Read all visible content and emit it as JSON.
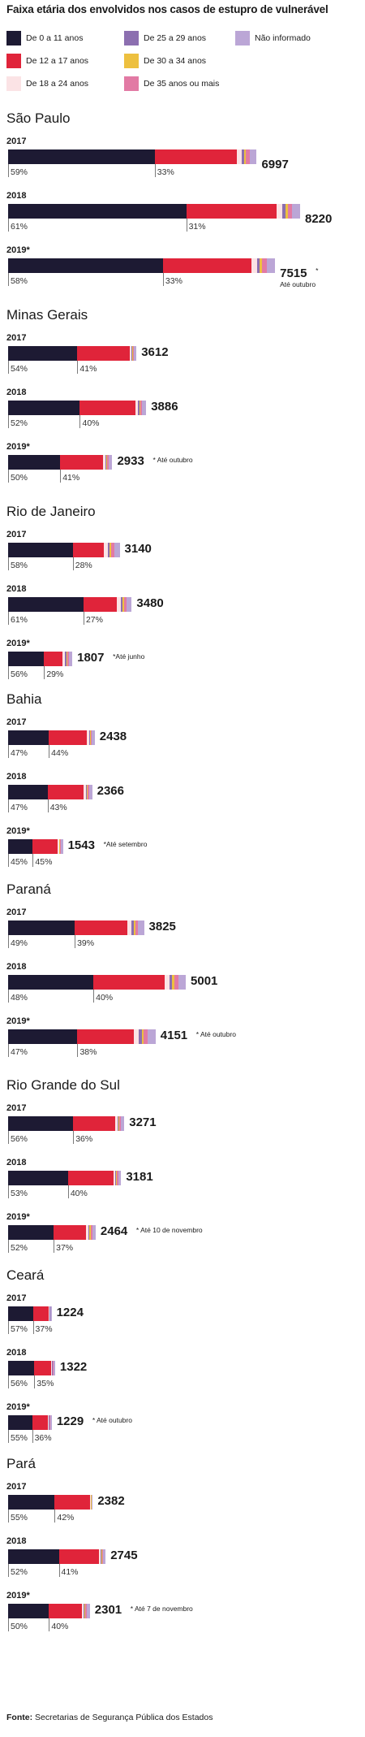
{
  "chart_data": {
    "type": "bar",
    "orientation": "horizontal-stacked",
    "title": "Faixa etária dos envolvidos nos casos de estupro de vulnerável",
    "source_label": "Fonte:",
    "source_text": "Secretarias de Segurança Pública dos Estados",
    "legend": [
      {
        "name": "De 0 a 11 anos",
        "color": "#1d1a33"
      },
      {
        "name": "De 25 a 29 anos",
        "color": "#8c6fb0"
      },
      {
        "name": "Não informado",
        "color": "#bba6d6"
      },
      {
        "name": "De 12 a 17 anos",
        "color": "#e0243a"
      },
      {
        "name": "De 30 a 34 anos",
        "color": "#edc03f"
      },
      {
        "name": "De 18 a 24 anos",
        "color": "#fbe3e5"
      },
      {
        "name": "De 35 anos ou mais",
        "color": "#e27aa4"
      }
    ],
    "states": [
      {
        "name": "São Paulo",
        "years": [
          {
            "label": "2017",
            "total": 6997,
            "total_text": "6997",
            "pct_0_11": 59,
            "pct_0_11_text": "59%",
            "pct_12_17": 33,
            "pct_12_17_text": "33%",
            "note": ""
          },
          {
            "label": "2018",
            "total": 8220,
            "total_text": "8220",
            "pct_0_11": 61,
            "pct_0_11_text": "61%",
            "pct_12_17": 31,
            "pct_12_17_text": "31%",
            "note": ""
          },
          {
            "label": "2019*",
            "total": 7515,
            "total_text": "7515",
            "pct_0_11": 58,
            "pct_0_11_text": "58%",
            "pct_12_17": 33,
            "pct_12_17_text": "33%",
            "note": "*",
            "note2": "Até outubro"
          }
        ]
      },
      {
        "name": "Minas Gerais",
        "years": [
          {
            "label": "2017",
            "total": 3612,
            "total_text": "3612",
            "pct_0_11": 54,
            "pct_0_11_text": "54%",
            "pct_12_17": 41,
            "pct_12_17_text": "41%",
            "note": ""
          },
          {
            "label": "2018",
            "total": 3886,
            "total_text": "3886",
            "pct_0_11": 52,
            "pct_0_11_text": "52%",
            "pct_12_17": 40,
            "pct_12_17_text": "40%",
            "note": ""
          },
          {
            "label": "2019*",
            "total": 2933,
            "total_text": "2933",
            "pct_0_11": 50,
            "pct_0_11_text": "50%",
            "pct_12_17": 41,
            "pct_12_17_text": "41%",
            "note": "* Até outubro"
          }
        ]
      },
      {
        "name": "Rio de Janeiro",
        "years": [
          {
            "label": "2017",
            "total": 3140,
            "total_text": "3140",
            "pct_0_11": 58,
            "pct_0_11_text": "58%",
            "pct_12_17": 28,
            "pct_12_17_text": "28%",
            "note": ""
          },
          {
            "label": "2018",
            "total": 3480,
            "total_text": "3480",
            "pct_0_11": 61,
            "pct_0_11_text": "61%",
            "pct_12_17": 27,
            "pct_12_17_text": "27%",
            "note": ""
          },
          {
            "label": "2019*",
            "total": 1807,
            "total_text": "1807",
            "pct_0_11": 56,
            "pct_0_11_text": "56%",
            "pct_12_17": 29,
            "pct_12_17_text": "29%",
            "note": "*Até junho"
          }
        ]
      },
      {
        "name": "Bahia",
        "years": [
          {
            "label": "2017",
            "total": 2438,
            "total_text": "2438",
            "pct_0_11": 47,
            "pct_0_11_text": "47%",
            "pct_12_17": 44,
            "pct_12_17_text": "44%",
            "note": ""
          },
          {
            "label": "2018",
            "total": 2366,
            "total_text": "2366",
            "pct_0_11": 47,
            "pct_0_11_text": "47%",
            "pct_12_17": 43,
            "pct_12_17_text": "43%",
            "note": ""
          },
          {
            "label": "2019*",
            "total": 1543,
            "total_text": "1543",
            "pct_0_11": 45,
            "pct_0_11_text": "45%",
            "pct_12_17": 45,
            "pct_12_17_text": "45%",
            "note": "*Até setembro"
          }
        ]
      },
      {
        "name": "Paraná",
        "years": [
          {
            "label": "2017",
            "total": 3825,
            "total_text": "3825",
            "pct_0_11": 49,
            "pct_0_11_text": "49%",
            "pct_12_17": 39,
            "pct_12_17_text": "39%",
            "note": ""
          },
          {
            "label": "2018",
            "total": 5001,
            "total_text": "5001",
            "pct_0_11": 48,
            "pct_0_11_text": "48%",
            "pct_12_17": 40,
            "pct_12_17_text": "40%",
            "note": ""
          },
          {
            "label": "2019*",
            "total": 4151,
            "total_text": "4151",
            "pct_0_11": 47,
            "pct_0_11_text": "47%",
            "pct_12_17": 38,
            "pct_12_17_text": "38%",
            "note": "* Até outubro"
          }
        ]
      },
      {
        "name": "Rio Grande do Sul",
        "years": [
          {
            "label": "2017",
            "total": 3271,
            "total_text": "3271",
            "pct_0_11": 56,
            "pct_0_11_text": "56%",
            "pct_12_17": 36,
            "pct_12_17_text": "36%",
            "note": ""
          },
          {
            "label": "2018",
            "total": 3181,
            "total_text": "3181",
            "pct_0_11": 53,
            "pct_0_11_text": "53%",
            "pct_12_17": 40,
            "pct_12_17_text": "40%",
            "note": ""
          },
          {
            "label": "2019*",
            "total": 2464,
            "total_text": "2464",
            "pct_0_11": 52,
            "pct_0_11_text": "52%",
            "pct_12_17": 37,
            "pct_12_17_text": "37%",
            "note": "* Até 10 de novembro"
          }
        ]
      },
      {
        "name": "Ceará",
        "years": [
          {
            "label": "2017",
            "total": 1224,
            "total_text": "1224",
            "pct_0_11": 57,
            "pct_0_11_text": "57%",
            "pct_12_17": 37,
            "pct_12_17_text": "37%",
            "note": ""
          },
          {
            "label": "2018",
            "total": 1322,
            "total_text": "1322",
            "pct_0_11": 56,
            "pct_0_11_text": "56%",
            "pct_12_17": 35,
            "pct_12_17_text": "35%",
            "note": ""
          },
          {
            "label": "2019*",
            "total": 1229,
            "total_text": "1229",
            "pct_0_11": 55,
            "pct_0_11_text": "55%",
            "pct_12_17": 36,
            "pct_12_17_text": "36%",
            "note": "* Até outubro"
          }
        ]
      },
      {
        "name": "Pará",
        "years": [
          {
            "label": "2017",
            "total": 2382,
            "total_text": "2382",
            "pct_0_11": 55,
            "pct_0_11_text": "55%",
            "pct_12_17": 42,
            "pct_12_17_text": "42%",
            "note": ""
          },
          {
            "label": "2018",
            "total": 2745,
            "total_text": "2745",
            "pct_0_11": 52,
            "pct_0_11_text": "52%",
            "pct_12_17": 41,
            "pct_12_17_text": "41%",
            "note": ""
          },
          {
            "label": "2019*",
            "total": 2301,
            "total_text": "2301",
            "pct_0_11": 50,
            "pct_0_11_text": "50%",
            "pct_12_17": 40,
            "pct_12_17_text": "40%",
            "note": "* Até 7 de novembro"
          }
        ]
      }
    ]
  }
}
